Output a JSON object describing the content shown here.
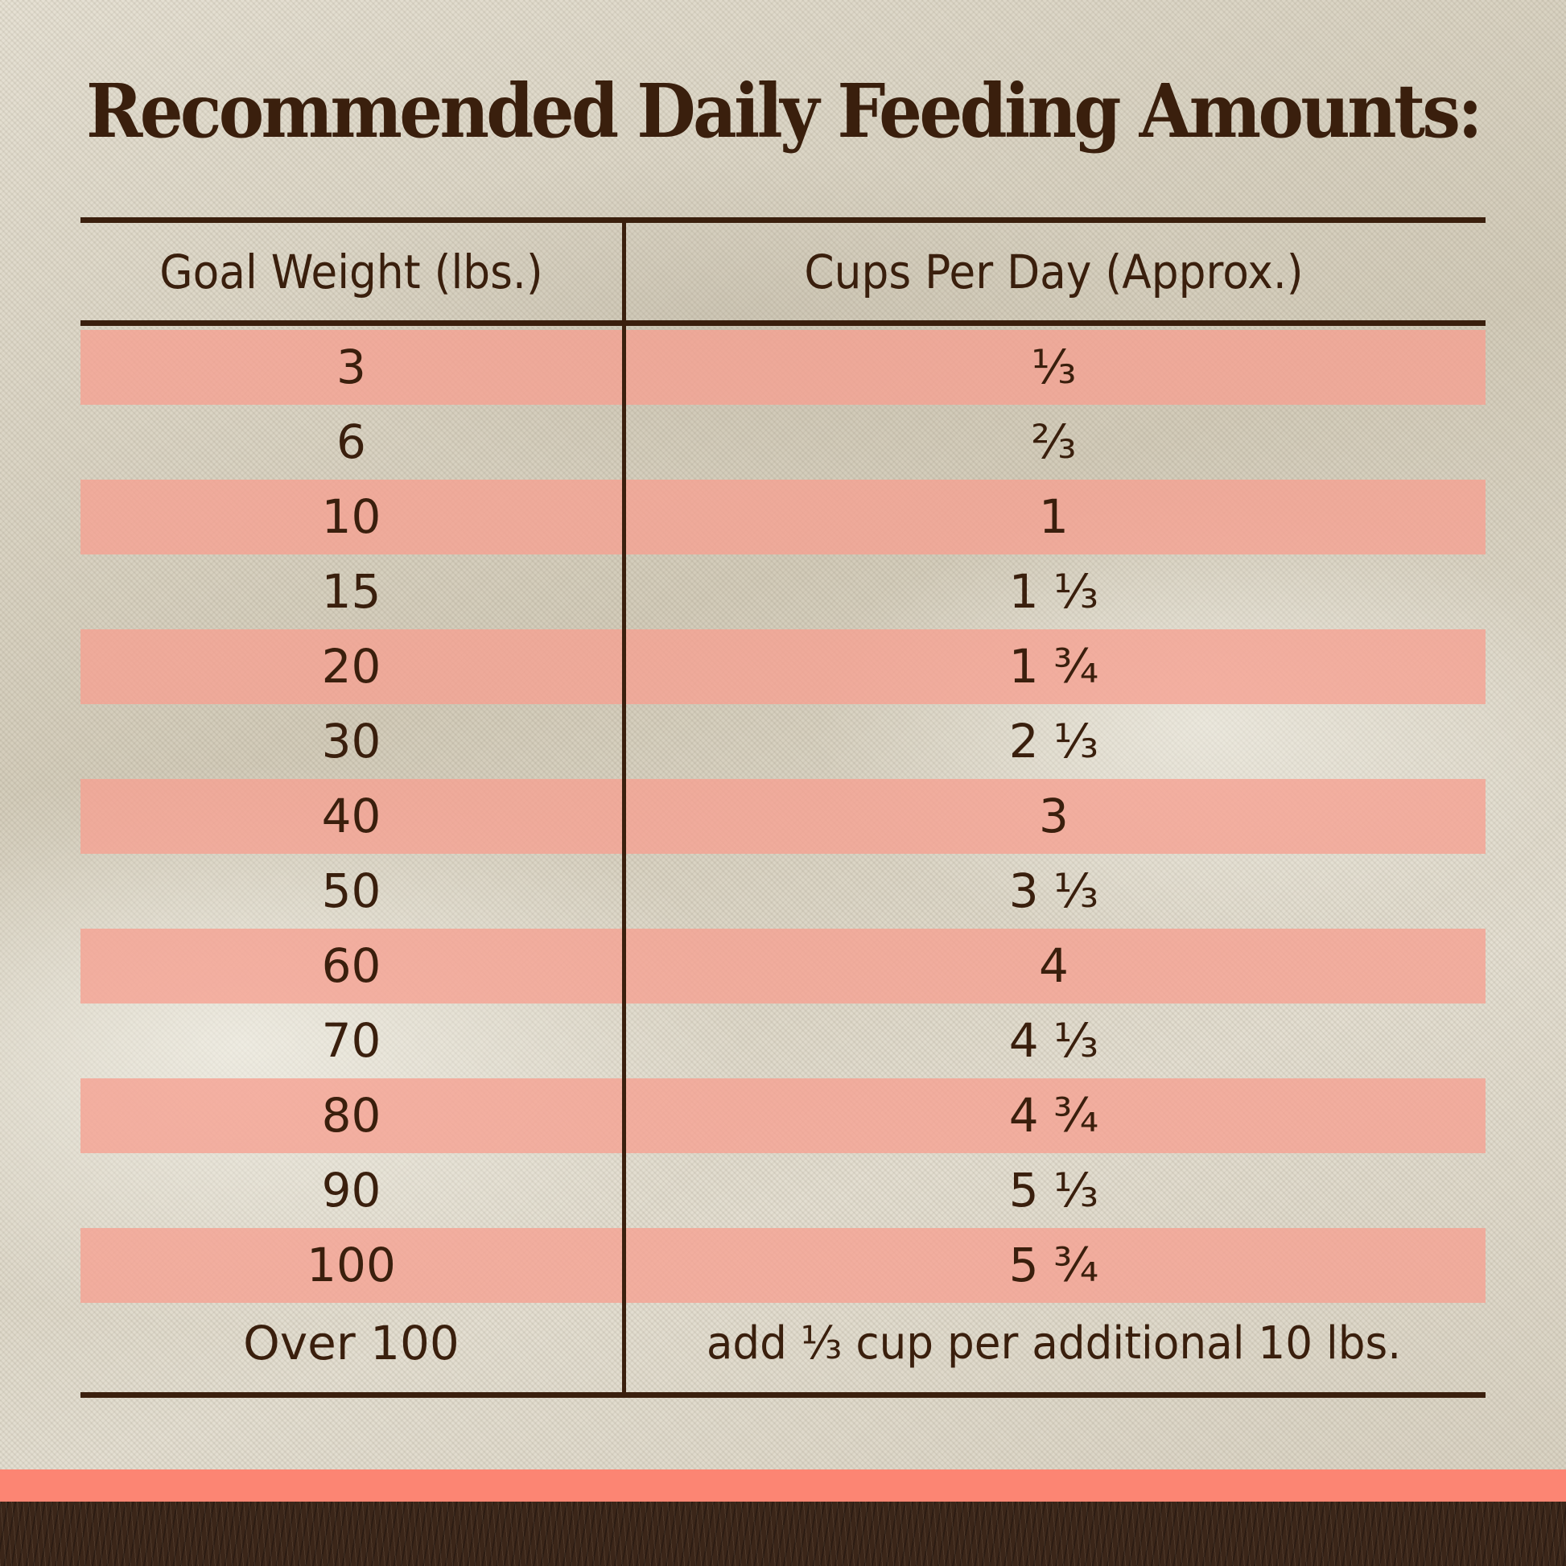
{
  "title": "Recommended Daily Feeding Amounts:",
  "table": {
    "headers": {
      "weight": "Goal Weight (lbs.)",
      "cups": "Cups Per Day (Approx.)"
    },
    "rows": [
      {
        "weight": "3",
        "cups": "⅓",
        "shaded": true
      },
      {
        "weight": "6",
        "cups": "⅔",
        "shaded": false
      },
      {
        "weight": "10",
        "cups": "1",
        "shaded": true
      },
      {
        "weight": "15",
        "cups": "1 ⅓",
        "shaded": false
      },
      {
        "weight": "20",
        "cups": "1 ¾",
        "shaded": true
      },
      {
        "weight": "30",
        "cups": "2 ⅓",
        "shaded": false
      },
      {
        "weight": "40",
        "cups": "3",
        "shaded": true
      },
      {
        "weight": "50",
        "cups": "3 ⅓",
        "shaded": false
      },
      {
        "weight": "60",
        "cups": "4",
        "shaded": true
      },
      {
        "weight": "70",
        "cups": "4 ⅓",
        "shaded": false
      },
      {
        "weight": "80",
        "cups": "4 ¾",
        "shaded": true
      },
      {
        "weight": "90",
        "cups": "5 ⅓",
        "shaded": false
      },
      {
        "weight": "100",
        "cups": "5 ¾",
        "shaded": true
      },
      {
        "weight": "Over 100",
        "cups": "add ⅓ cup per additional 10 lbs.",
        "shaded": false
      }
    ]
  },
  "colors": {
    "text": "#3a1f0d",
    "stripe": "#f6a091",
    "accent_band": "#fc8573",
    "soil_band": "#3b2619",
    "background": "#ddd7c8"
  }
}
